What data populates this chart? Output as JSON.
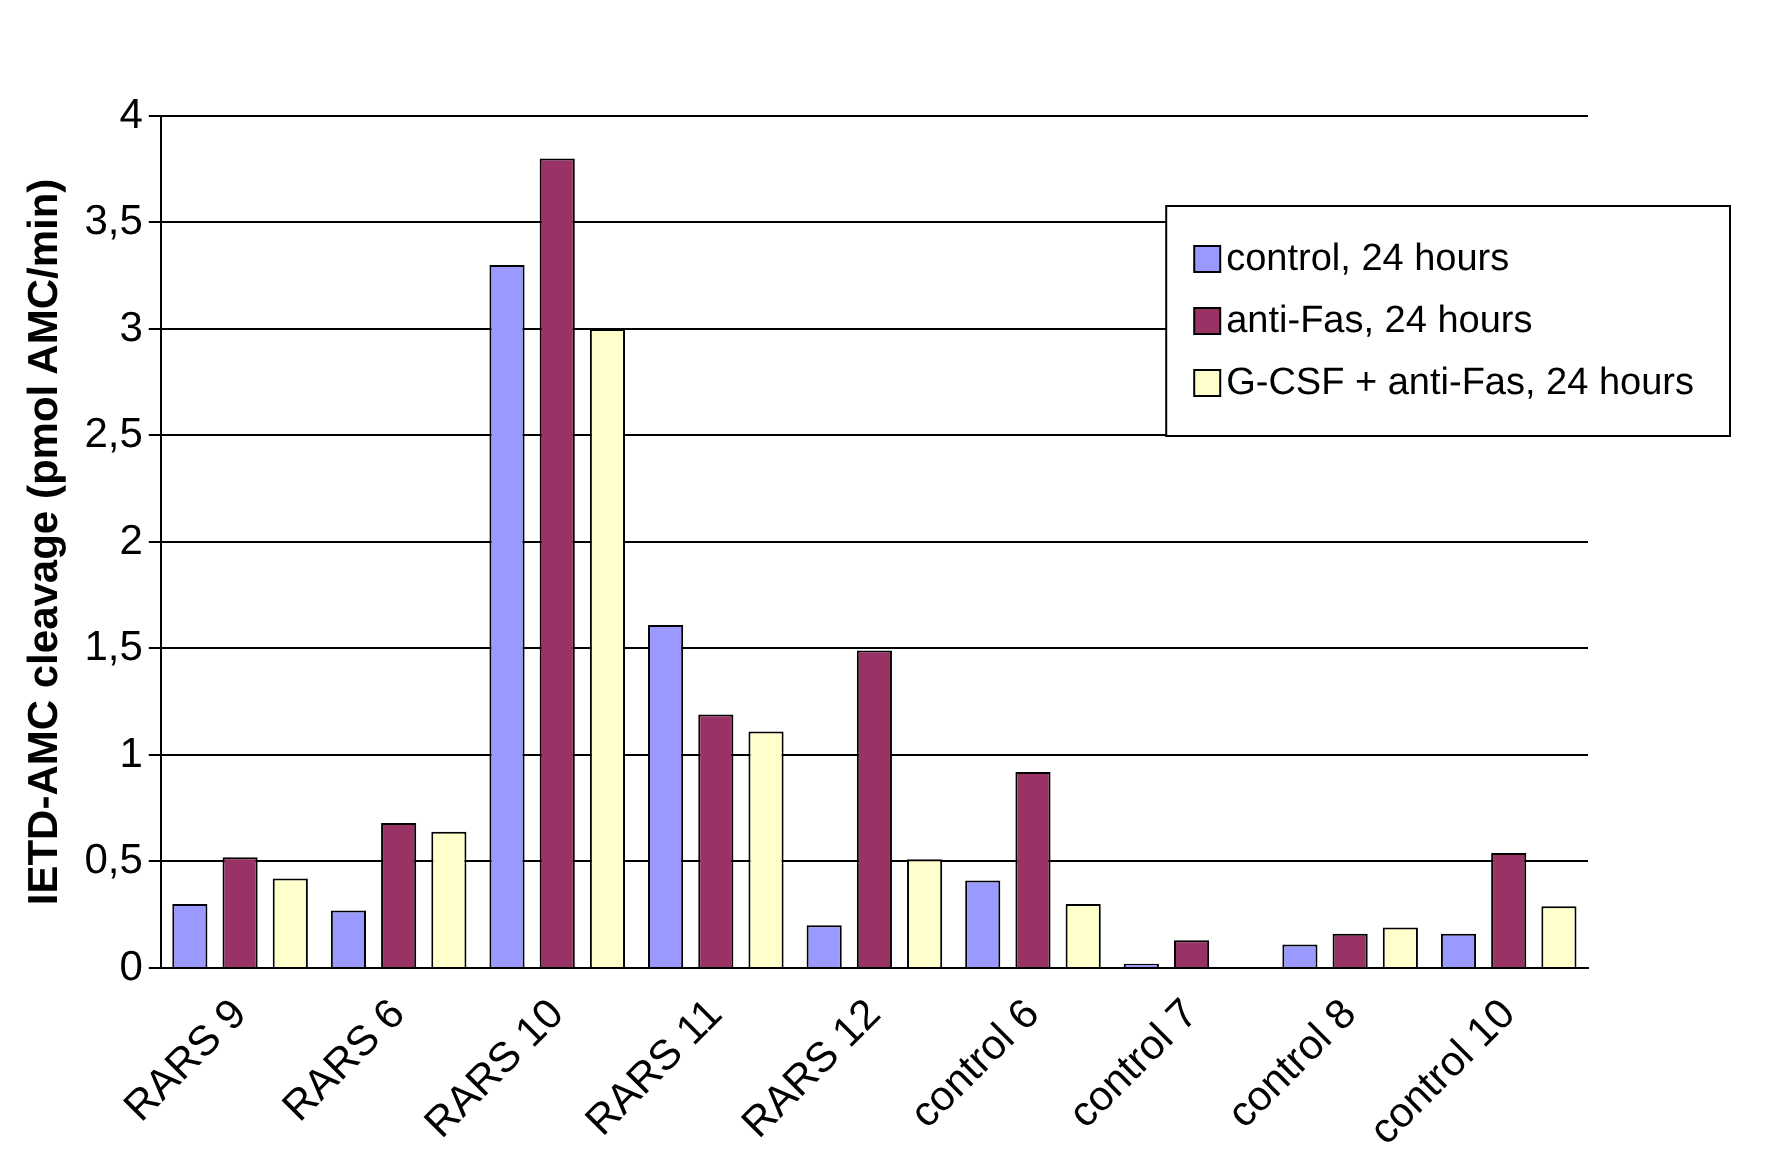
{
  "chart_data": {
    "type": "bar",
    "ylabel": "IETD-AMC cleavage (pmol AMC/min)",
    "categories": [
      "RARS 9",
      "RARS 6",
      "RARS 10",
      "RARS 11",
      "RARS 12",
      "control 6",
      "control 7",
      "control 8",
      "control 10"
    ],
    "series": [
      {
        "name": "control, 24 hours",
        "color": "#9999ff",
        "values": [
          0.3,
          0.27,
          3.3,
          1.61,
          0.2,
          0.41,
          0.02,
          0.11,
          0.16
        ]
      },
      {
        "name": "anti-Fas, 24 hours",
        "color": "#993366",
        "values": [
          0.52,
          0.68,
          3.8,
          1.19,
          1.49,
          0.92,
          0.13,
          0.16,
          0.54
        ]
      },
      {
        "name": "G-CSF + anti-Fas, 24 hours",
        "color": "#ffffcc",
        "values": [
          0.42,
          0.64,
          3.0,
          1.11,
          0.51,
          0.3,
          0,
          0.19,
          0.29
        ]
      }
    ],
    "ylim": [
      0,
      4
    ],
    "yticks": [
      0,
      {
        "value": 0.5,
        "label": "0,5"
      },
      1,
      {
        "value": 1.5,
        "label": "1,5"
      },
      2,
      {
        "value": 2.5,
        "label": "2,5"
      },
      3,
      {
        "value": 3.5,
        "label": "3,5"
      },
      4
    ],
    "grid": "y",
    "legend": "top right"
  }
}
